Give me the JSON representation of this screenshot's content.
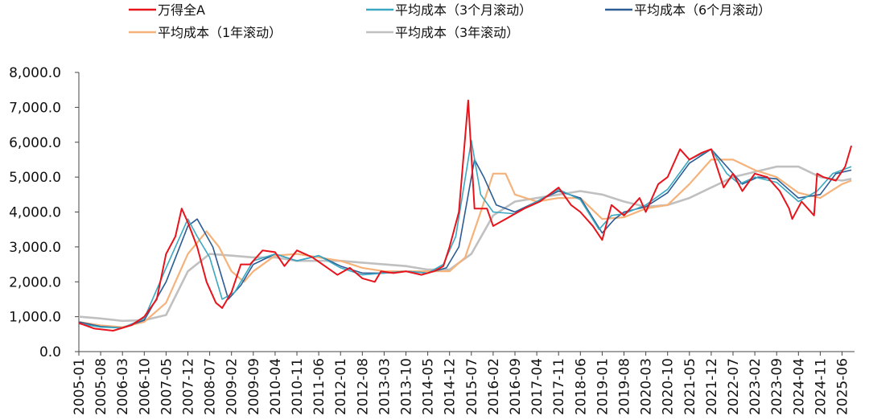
{
  "chart_data": {
    "type": "line",
    "title": "",
    "xlabel": "",
    "ylabel": "",
    "ylim": [
      0,
      8000
    ],
    "yticks": [
      "0.0",
      "1,000.0",
      "2,000.0",
      "3,000.0",
      "4,000.0",
      "5,000.0",
      "6,000.0",
      "7,000.0",
      "8,000.0"
    ],
    "xticks": [
      "2005-01",
      "2005-08",
      "2006-03",
      "2006-10",
      "2007-05",
      "2007-12",
      "2008-07",
      "2009-02",
      "2009-09",
      "2010-04",
      "2010-11",
      "2011-06",
      "2012-01",
      "2012-08",
      "2013-03",
      "2013-10",
      "2014-05",
      "2014-12",
      "2015-07",
      "2016-02",
      "2016-09",
      "2017-04",
      "2017-11",
      "2018-06",
      "2019-01",
      "2019-08",
      "2020-03",
      "2020-10",
      "2021-05",
      "2021-12",
      "2022-07",
      "2023-02",
      "2023-09",
      "2024-04",
      "2024-11",
      "2025-06"
    ],
    "grid": false,
    "legend_position": "top",
    "series": [
      {
        "name": "万得全A",
        "color": "#e8141c",
        "x": [
          "2005-01",
          "2005-06",
          "2005-12",
          "2006-06",
          "2006-10",
          "2007-02",
          "2007-05",
          "2007-08",
          "2007-10",
          "2007-12",
          "2008-03",
          "2008-06",
          "2008-09",
          "2008-11",
          "2009-02",
          "2009-05",
          "2009-08",
          "2009-12",
          "2010-04",
          "2010-07",
          "2010-11",
          "2011-04",
          "2011-08",
          "2011-12",
          "2012-04",
          "2012-08",
          "2012-12",
          "2013-02",
          "2013-06",
          "2013-10",
          "2014-03",
          "2014-07",
          "2014-10",
          "2014-12",
          "2015-03",
          "2015-06",
          "2015-08",
          "2015-12",
          "2016-02",
          "2016-06",
          "2016-12",
          "2017-05",
          "2017-11",
          "2018-03",
          "2018-06",
          "2018-10",
          "2019-01",
          "2019-04",
          "2019-08",
          "2020-01",
          "2020-03",
          "2020-07",
          "2020-10",
          "2021-02",
          "2021-05",
          "2021-09",
          "2021-12",
          "2022-04",
          "2022-07",
          "2022-10",
          "2023-02",
          "2023-06",
          "2023-10",
          "2024-01",
          "2024-02",
          "2024-05",
          "2024-09",
          "2024-10",
          "2024-12",
          "2025-04",
          "2025-07",
          "2025-09"
        ],
        "values": [
          820,
          660,
          600,
          760,
          1000,
          1500,
          2800,
          3300,
          4100,
          3700,
          3000,
          2000,
          1400,
          1250,
          1700,
          2500,
          2500,
          2900,
          2850,
          2450,
          2900,
          2700,
          2450,
          2200,
          2400,
          2100,
          2000,
          2300,
          2250,
          2300,
          2200,
          2300,
          2450,
          3000,
          4000,
          7200,
          4100,
          4100,
          3600,
          3800,
          4100,
          4300,
          4700,
          4200,
          4000,
          3600,
          3200,
          4200,
          3900,
          4400,
          4000,
          4800,
          5000,
          5800,
          5500,
          5700,
          5800,
          4700,
          5100,
          4600,
          5100,
          5000,
          4600,
          4100,
          3800,
          4300,
          3900,
          5100,
          5000,
          4900,
          5300,
          5900
        ]
      },
      {
        "name": "平均成本（3个月滚动）",
        "color": "#3aa8c1",
        "x": [
          "2005-01",
          "2005-08",
          "2006-03",
          "2006-10",
          "2007-05",
          "2007-12",
          "2008-03",
          "2008-07",
          "2008-11",
          "2009-03",
          "2009-09",
          "2010-04",
          "2010-11",
          "2011-06",
          "2012-01",
          "2012-08",
          "2013-03",
          "2013-10",
          "2014-05",
          "2014-10",
          "2015-02",
          "2015-07",
          "2015-10",
          "2016-02",
          "2016-09",
          "2017-04",
          "2017-11",
          "2018-06",
          "2018-12",
          "2019-04",
          "2019-08",
          "2020-03",
          "2020-10",
          "2021-05",
          "2021-12",
          "2022-05",
          "2022-09",
          "2023-02",
          "2023-09",
          "2024-04",
          "2024-10",
          "2025-03",
          "2025-09"
        ],
        "values": [
          800,
          700,
          680,
          950,
          2400,
          3800,
          3300,
          2700,
          1500,
          1700,
          2600,
          2800,
          2600,
          2750,
          2400,
          2200,
          2250,
          2300,
          2250,
          2500,
          3300,
          6050,
          4500,
          4000,
          3950,
          4300,
          4650,
          4350,
          3500,
          3900,
          3950,
          4200,
          4650,
          5500,
          5800,
          5100,
          4800,
          5000,
          4850,
          4300,
          4600,
          5100,
          5300
        ]
      },
      {
        "name": "平均成本（6个月滚动）",
        "color": "#2c5c94",
        "x": [
          "2005-01",
          "2005-08",
          "2006-03",
          "2006-10",
          "2007-05",
          "2007-12",
          "2008-03",
          "2008-08",
          "2009-01",
          "2009-05",
          "2009-09",
          "2010-04",
          "2010-11",
          "2011-06",
          "2012-01",
          "2012-08",
          "2013-03",
          "2013-10",
          "2014-05",
          "2014-11",
          "2015-03",
          "2015-08",
          "2015-11",
          "2016-03",
          "2016-09",
          "2017-04",
          "2017-11",
          "2018-06",
          "2019-01",
          "2019-05",
          "2019-08",
          "2020-03",
          "2020-10",
          "2021-05",
          "2021-12",
          "2022-05",
          "2022-10",
          "2023-03",
          "2023-09",
          "2024-04",
          "2024-11",
          "2025-04",
          "2025-09"
        ],
        "values": [
          850,
          720,
          680,
          900,
          2000,
          3600,
          3800,
          3000,
          1500,
          1900,
          2500,
          2800,
          2600,
          2750,
          2450,
          2250,
          2250,
          2300,
          2250,
          2400,
          3000,
          5500,
          5000,
          4200,
          4000,
          4300,
          4600,
          4400,
          3400,
          3800,
          4000,
          4150,
          4550,
          5400,
          5800,
          5300,
          4800,
          5000,
          4950,
          4400,
          4500,
          5100,
          5200
        ]
      },
      {
        "name": "平均成本（1年滚动）",
        "color": "#f5b27a",
        "x": [
          "2005-01",
          "2005-08",
          "2006-03",
          "2006-10",
          "2007-05",
          "2007-12",
          "2008-06",
          "2008-10",
          "2009-02",
          "2009-06",
          "2009-09",
          "2010-04",
          "2010-11",
          "2011-06",
          "2012-01",
          "2012-08",
          "2013-03",
          "2013-10",
          "2014-05",
          "2014-12",
          "2015-05",
          "2015-10",
          "2016-02",
          "2016-06",
          "2016-09",
          "2017-04",
          "2017-11",
          "2018-06",
          "2019-01",
          "2019-08",
          "2020-03",
          "2020-10",
          "2021-05",
          "2021-12",
          "2022-07",
          "2023-02",
          "2023-09",
          "2024-04",
          "2024-11",
          "2025-06",
          "2025-09"
        ],
        "values": [
          850,
          750,
          700,
          850,
          1400,
          2800,
          3450,
          3000,
          2300,
          2000,
          2300,
          2750,
          2800,
          2700,
          2600,
          2400,
          2300,
          2300,
          2300,
          2300,
          2700,
          4000,
          5100,
          5100,
          4500,
          4300,
          4400,
          4400,
          3800,
          3850,
          4100,
          4200,
          4800,
          5500,
          5500,
          5200,
          5000,
          4550,
          4400,
          4800,
          4900
        ]
      },
      {
        "name": "平均成本（3年滚动）",
        "color": "#c0c0c0",
        "x": [
          "2005-01",
          "2005-08",
          "2006-03",
          "2006-10",
          "2007-05",
          "2007-12",
          "2008-07",
          "2009-02",
          "2009-09",
          "2010-04",
          "2010-11",
          "2011-06",
          "2012-01",
          "2012-08",
          "2013-03",
          "2013-10",
          "2014-05",
          "2014-12",
          "2015-07",
          "2016-02",
          "2016-09",
          "2017-04",
          "2017-11",
          "2018-06",
          "2019-01",
          "2019-08",
          "2020-03",
          "2020-10",
          "2021-05",
          "2021-12",
          "2022-07",
          "2023-02",
          "2023-09",
          "2024-04",
          "2024-11",
          "2025-06",
          "2025-09"
        ],
        "values": [
          1000,
          950,
          880,
          900,
          1050,
          2300,
          2800,
          2750,
          2700,
          2700,
          2600,
          2600,
          2600,
          2550,
          2500,
          2450,
          2350,
          2350,
          2800,
          3900,
          4300,
          4400,
          4500,
          4600,
          4500,
          4300,
          4150,
          4200,
          4400,
          4700,
          5000,
          5150,
          5300,
          5300,
          5000,
          4900,
          4950
        ]
      }
    ]
  }
}
